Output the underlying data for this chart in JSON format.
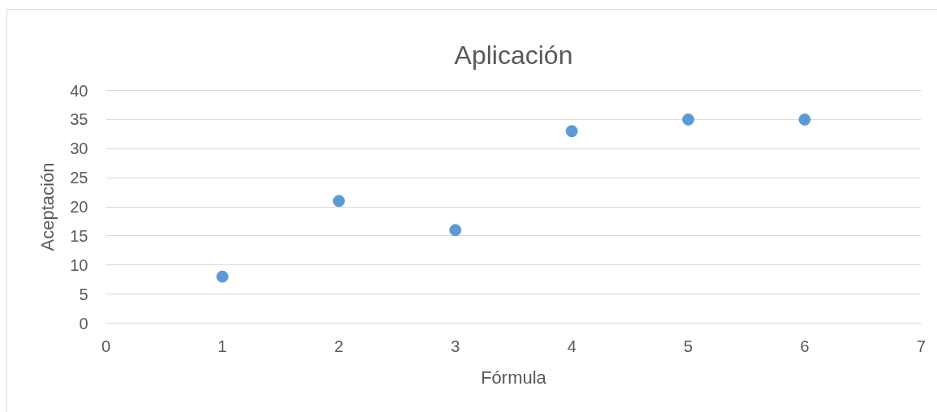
{
  "chart_data": {
    "type": "scatter",
    "title": "Aplicación",
    "xlabel": "Fórmula",
    "ylabel": "Aceptación",
    "x": [
      1,
      2,
      3,
      4,
      5,
      6
    ],
    "series": [
      {
        "color": "#5b9bd5",
        "values": [
          8,
          21,
          16,
          33,
          35,
          35
        ]
      }
    ],
    "xlim": [
      0,
      7
    ],
    "ylim": [
      0,
      40
    ],
    "xticks": [
      0,
      1,
      2,
      3,
      4,
      5,
      6,
      7
    ],
    "yticks": [
      0,
      5,
      10,
      15,
      20,
      25,
      30,
      35,
      40
    ],
    "grid": "y",
    "marker": "circle"
  }
}
